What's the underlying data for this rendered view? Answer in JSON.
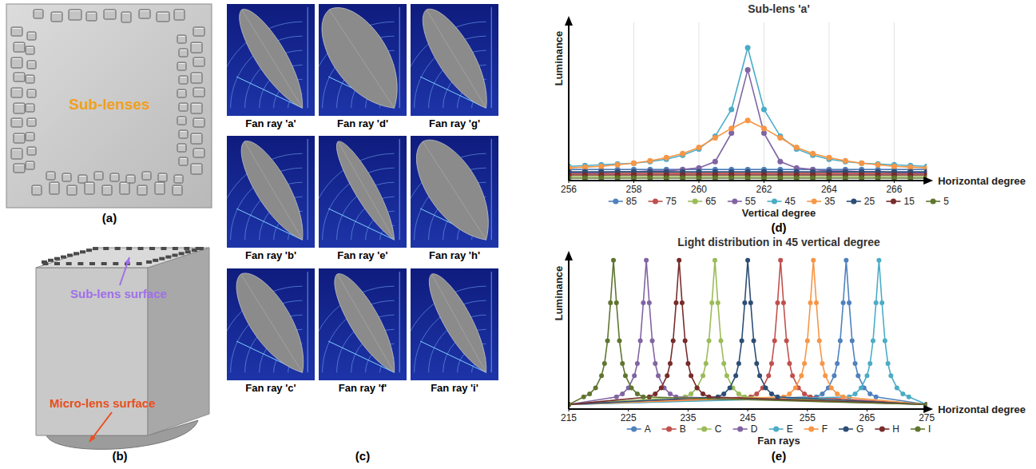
{
  "panels": [
    {
      "label": "(a)",
      "annotation": "Sub-lenses"
    },
    {
      "label": "(b)",
      "annotations": [
        "Sub-lens surface",
        "Micro-lens surface"
      ]
    },
    {
      "label": "(c)",
      "captions": [
        "Fan ray 'a'",
        "Fan ray 'd'",
        "Fan ray 'g'",
        "Fan ray 'b'",
        "Fan ray 'e'",
        "Fan ray 'h'",
        "Fan ray 'c'",
        "Fan ray 'f'",
        "Fan ray 'i'"
      ]
    }
  ],
  "chart_data": [
    {
      "type": "line",
      "title": "Sub-lens 'a'",
      "panel_label": "(d)",
      "x_label": "Horizontal degree",
      "y_label": "Luminance",
      "legend_title": "Vertical degree",
      "x": [
        256,
        256.5,
        257,
        257.5,
        258,
        258.5,
        259,
        259.5,
        260,
        260.5,
        261,
        261.5,
        262,
        262.5,
        263,
        263.5,
        264,
        264.5,
        265,
        265.5,
        266,
        266.5,
        267
      ],
      "xlim": [
        256,
        267
      ],
      "xticks": [
        256,
        258,
        260,
        262,
        264,
        266
      ],
      "ylim": [
        0,
        100
      ],
      "grid": true,
      "legend": "bottom",
      "tick_labels": "x",
      "marker": "circle",
      "series": [
        {
          "name": "85",
          "color": "#4F81BD",
          "values": [
            7,
            7,
            7,
            7,
            7,
            7,
            7,
            7,
            7,
            7,
            7,
            7,
            7,
            7,
            7,
            7,
            7,
            7,
            7,
            7,
            7,
            7,
            7
          ]
        },
        {
          "name": "75",
          "color": "#C0504D",
          "values": [
            4.5,
            4.5,
            4.5,
            4.5,
            4.5,
            4.5,
            4.5,
            4.5,
            4.5,
            4.5,
            4.5,
            4.5,
            4.5,
            4.5,
            4.5,
            4.5,
            4.5,
            4.5,
            4.5,
            4.5,
            4.5,
            4.5,
            4.5
          ]
        },
        {
          "name": "65",
          "color": "#9BBB59",
          "values": [
            2.5,
            2.5,
            2.5,
            2.5,
            2.5,
            2.5,
            2.5,
            2.5,
            2.5,
            2.5,
            2.5,
            2.5,
            2.5,
            2.5,
            2.5,
            2.5,
            2.5,
            2.5,
            2.5,
            2.5,
            2.5,
            2.5,
            2.5
          ]
        },
        {
          "name": "55",
          "color": "#8064A2",
          "values": [
            5,
            5,
            5,
            5.5,
            5.5,
            6,
            6,
            7,
            8,
            12,
            30,
            70,
            30,
            12,
            8,
            7,
            6,
            6,
            5.5,
            5.5,
            5,
            5,
            5
          ]
        },
        {
          "name": "45",
          "color": "#4BACC6",
          "values": [
            9,
            9.5,
            10,
            10.5,
            11,
            12,
            13.5,
            16,
            20,
            28,
            45,
            84,
            45,
            28,
            20,
            16,
            13.5,
            12,
            11,
            10.5,
            10,
            9.5,
            9
          ]
        },
        {
          "name": "35",
          "color": "#F79646",
          "values": [
            8,
            8.5,
            9,
            10,
            11,
            12.5,
            14.5,
            17,
            21,
            27,
            33,
            38,
            33,
            27,
            21,
            17,
            14.5,
            12.5,
            11,
            10,
            9,
            8.5,
            8
          ]
        },
        {
          "name": "25",
          "color": "#2C4D75",
          "values": [
            5.5,
            5.5,
            5.5,
            5.5,
            5.5,
            5.5,
            5.5,
            5.5,
            5.5,
            5.5,
            5.5,
            5.5,
            5.5,
            5.5,
            5.5,
            5.5,
            5.5,
            5.5,
            5.5,
            5.5,
            5.5,
            5.5,
            5.5
          ]
        },
        {
          "name": "15",
          "color": "#772C2A",
          "values": [
            3.5,
            3.5,
            3.5,
            3.5,
            3.5,
            3.5,
            3.5,
            3.5,
            3.5,
            3.5,
            3.5,
            3.5,
            3.5,
            3.5,
            3.5,
            3.5,
            3.5,
            3.5,
            3.5,
            3.5,
            3.5,
            3.5,
            3.5
          ]
        },
        {
          "name": "5",
          "color": "#5F7530",
          "values": [
            1.5,
            1.5,
            1.5,
            1.5,
            1.5,
            1.5,
            1.5,
            1.5,
            1.5,
            1.5,
            1.5,
            1.5,
            1.5,
            1.5,
            1.5,
            1.5,
            1.5,
            1.5,
            1.5,
            1.5,
            1.5,
            1.5,
            1.5
          ]
        }
      ]
    },
    {
      "type": "line",
      "title": "Light distribution in 45 vertical degree",
      "panel_label": "(e)",
      "x_label": "Horizontal degree",
      "y_label": "Luminance",
      "legend_title": "Fan rays",
      "xlim": [
        215,
        275
      ],
      "xticks": [
        215,
        225,
        235,
        245,
        255,
        265,
        275
      ],
      "ylim": [
        0,
        100
      ],
      "grid": false,
      "legend": "bottom",
      "tick_labels": "x",
      "marker": "circle",
      "series": [
        {
          "name": "A",
          "color": "#4F81BD",
          "x": [
            215,
            256.5,
            257.5,
            258.5,
            259.5,
            260,
            260.5,
            261,
            261.5,
            262,
            262.5,
            263,
            263.5,
            264.5,
            265.5,
            266.5,
            275
          ],
          "values": [
            3,
            8,
            10,
            14,
            22,
            30,
            45,
            70,
            98,
            70,
            45,
            30,
            22,
            14,
            10,
            8,
            3
          ]
        },
        {
          "name": "B",
          "color": "#C0504D",
          "x": [
            215,
            245.5,
            246.5,
            247.5,
            248.5,
            249,
            249.5,
            250,
            250.5,
            251,
            251.5,
            252,
            252.5,
            253.5,
            254.5,
            255.5,
            275
          ],
          "values": [
            3,
            8,
            10,
            14,
            22,
            30,
            45,
            70,
            98,
            70,
            45,
            30,
            22,
            14,
            10,
            8,
            3
          ]
        },
        {
          "name": "C",
          "color": "#9BBB59",
          "x": [
            215,
            234.5,
            235.5,
            236.5,
            237.5,
            238,
            238.5,
            239,
            239.5,
            240,
            240.5,
            241,
            241.5,
            242.5,
            243.5,
            244.5,
            275
          ],
          "values": [
            3,
            8,
            10,
            14,
            22,
            30,
            45,
            70,
            98,
            70,
            45,
            30,
            22,
            14,
            10,
            8,
            3
          ]
        },
        {
          "name": "D",
          "color": "#8064A2",
          "x": [
            215,
            223,
            224,
            225,
            226,
            226.5,
            227,
            227.5,
            228,
            228.5,
            229,
            229.5,
            230,
            231,
            232,
            233,
            275
          ],
          "values": [
            3,
            8,
            10,
            14,
            22,
            30,
            45,
            70,
            98,
            70,
            45,
            30,
            22,
            14,
            10,
            8,
            3
          ]
        },
        {
          "name": "E",
          "color": "#4BACC6",
          "x": [
            215,
            262,
            263,
            264,
            265,
            265.5,
            266,
            266.5,
            267,
            267.5,
            268,
            268.5,
            269,
            270,
            271,
            272,
            275
          ],
          "values": [
            3,
            8,
            10,
            14,
            22,
            30,
            45,
            70,
            98,
            70,
            45,
            30,
            22,
            14,
            10,
            8,
            3
          ]
        },
        {
          "name": "F",
          "color": "#F79646",
          "x": [
            215,
            251,
            252,
            253,
            254,
            254.5,
            255,
            255.5,
            256,
            256.5,
            257,
            257.5,
            258,
            259,
            260,
            261,
            275
          ],
          "values": [
            3,
            8,
            10,
            14,
            22,
            30,
            45,
            70,
            98,
            70,
            45,
            30,
            22,
            14,
            10,
            8,
            3
          ]
        },
        {
          "name": "G",
          "color": "#2C4D75",
          "x": [
            215,
            240,
            241,
            242,
            243,
            243.5,
            244,
            244.5,
            245,
            245.5,
            246,
            246.5,
            247,
            248,
            249,
            250,
            275
          ],
          "values": [
            3,
            8,
            10,
            14,
            22,
            30,
            45,
            70,
            98,
            70,
            45,
            30,
            22,
            14,
            10,
            8,
            3
          ]
        },
        {
          "name": "H",
          "color": "#772C2A",
          "x": [
            215,
            228.5,
            229.5,
            230.5,
            231.5,
            232,
            232.5,
            233,
            233.5,
            234,
            234.5,
            235,
            235.5,
            236.5,
            237.5,
            238.5,
            275
          ],
          "values": [
            3,
            8,
            10,
            14,
            22,
            30,
            45,
            70,
            98,
            70,
            45,
            30,
            22,
            14,
            10,
            8,
            3
          ]
        },
        {
          "name": "I",
          "color": "#5F7530",
          "x": [
            215,
            217.5,
            218.5,
            219.5,
            220.5,
            221,
            221.5,
            222,
            222.5,
            223,
            223.5,
            224,
            224.5,
            225.5,
            226.5,
            227.5,
            275
          ],
          "values": [
            3,
            8,
            10,
            14,
            22,
            30,
            45,
            70,
            98,
            70,
            45,
            30,
            22,
            14,
            10,
            8,
            3
          ]
        }
      ]
    }
  ]
}
